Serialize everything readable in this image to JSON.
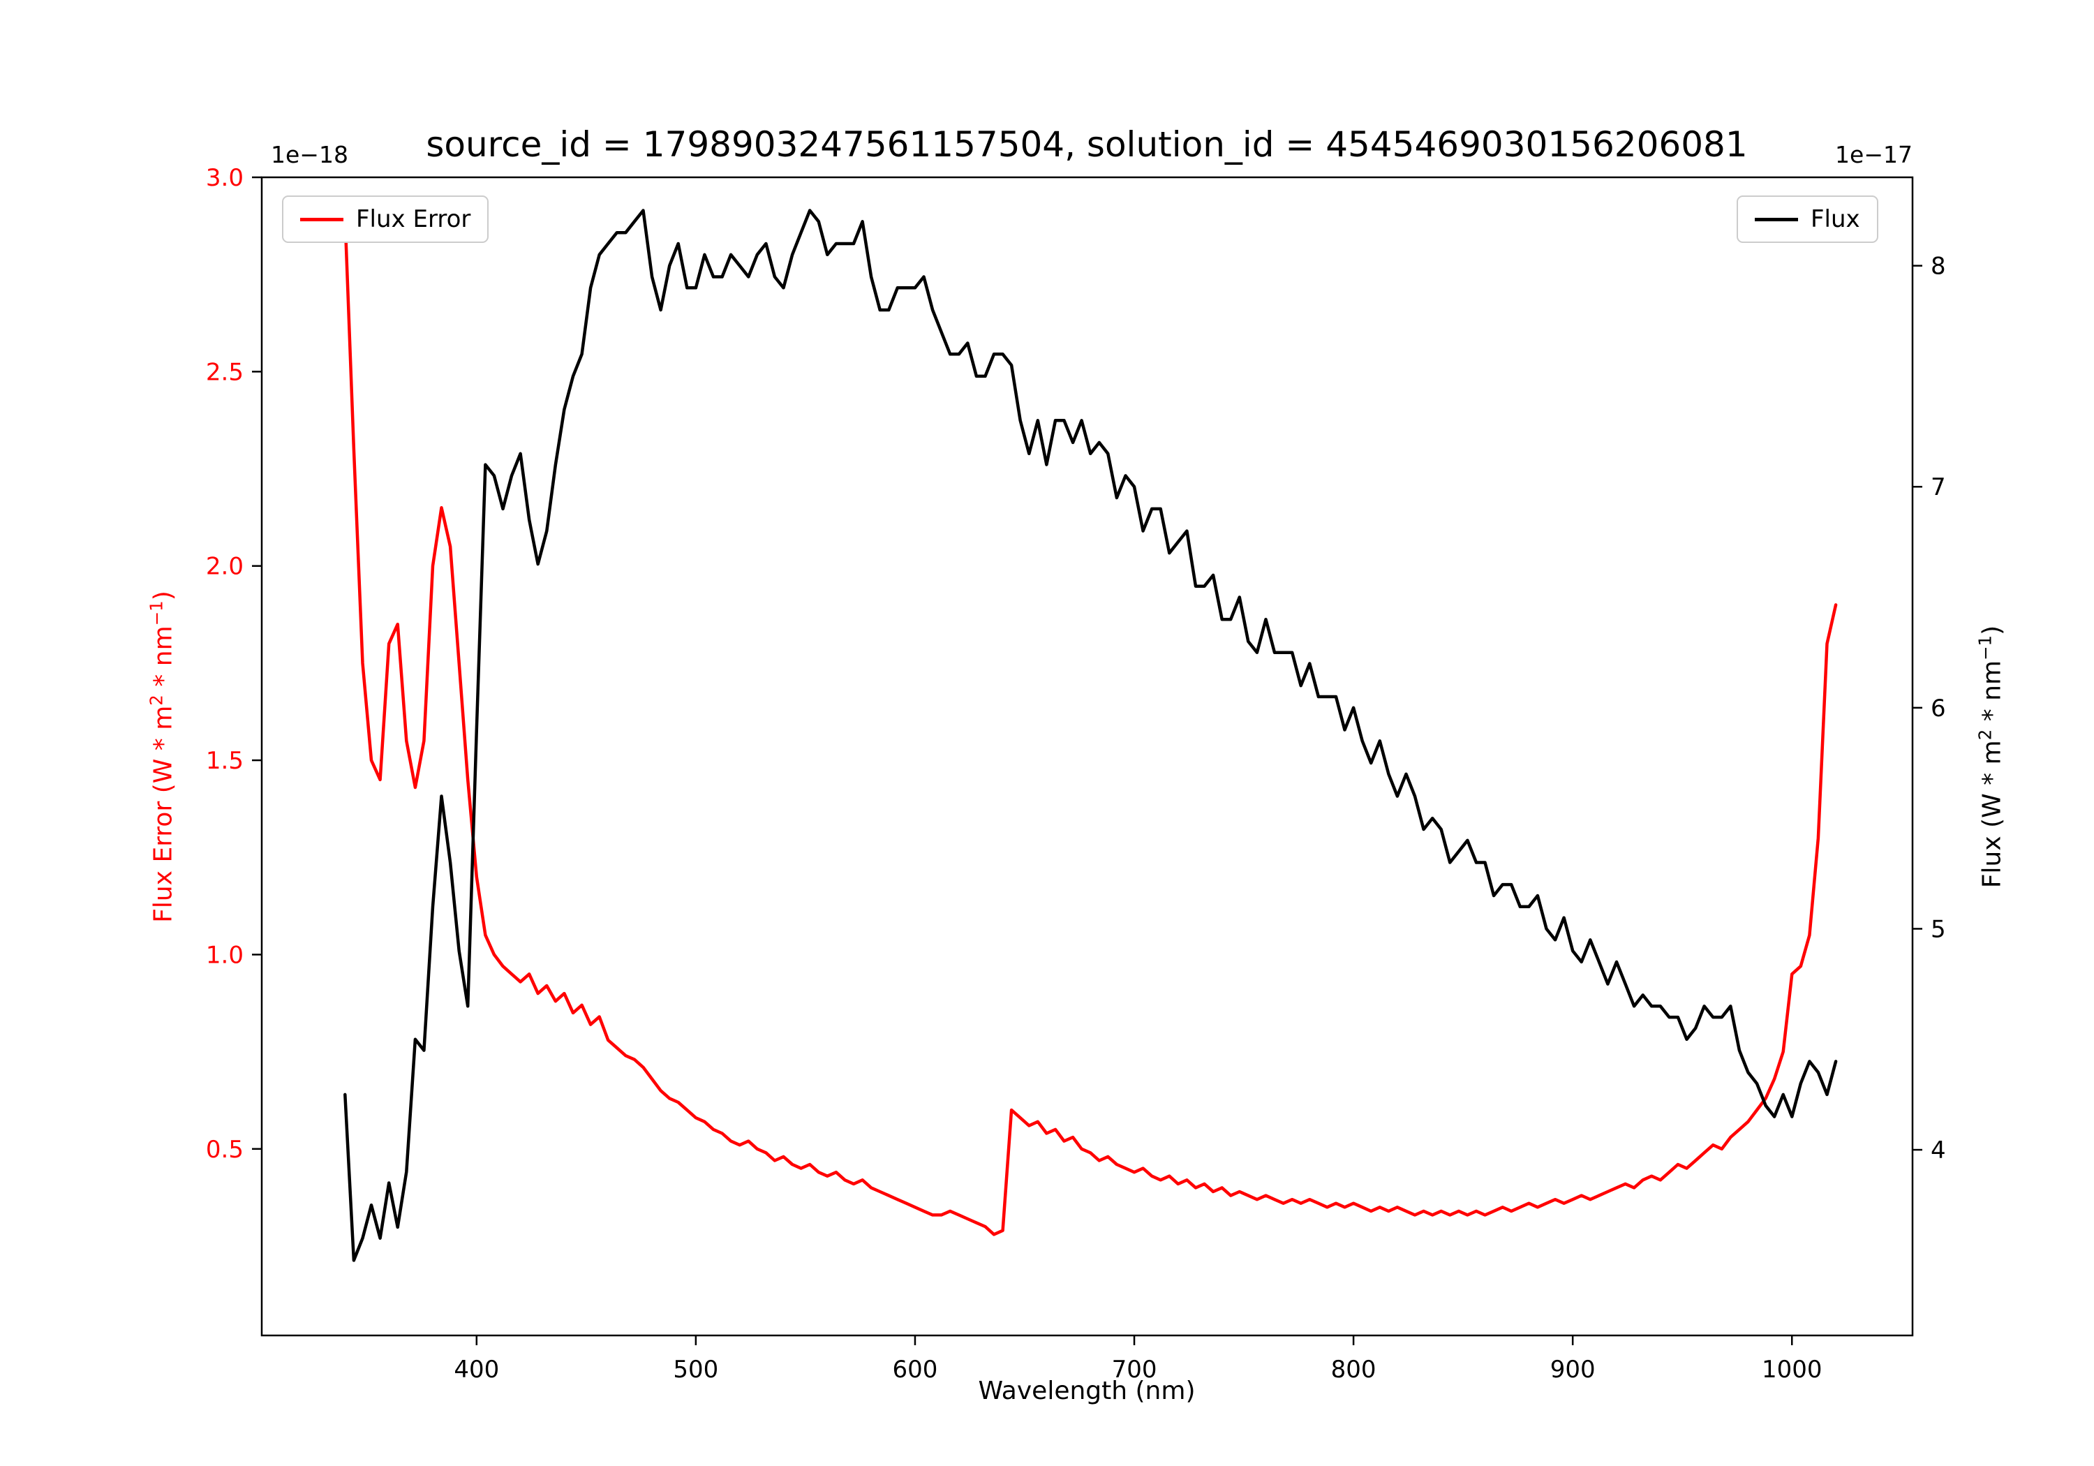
{
  "title": "source_id = 1798903247561157504, solution_id = 4545469030156206081",
  "xlabel": "Wavelength (nm)",
  "ylabel_left": {
    "p1": "Flux Error (W * m",
    "sup1": "2",
    "p2": " * nm",
    "sup2": "−1",
    "p3": ")"
  },
  "ylabel_right": {
    "p1": "Flux (W * m",
    "sup1": "2",
    "p2": " * nm",
    "sup2": "−1",
    "p3": ")"
  },
  "offset_left": "1e−18",
  "offset_right": "1e−17",
  "legend": {
    "flux_error": "Flux Error",
    "flux": "Flux"
  },
  "colors": {
    "flux_error": "#ff0000",
    "flux": "#000000",
    "axis": "#000000",
    "legend_border": "#cccccc"
  },
  "chart_data": {
    "type": "line",
    "title": "source_id = 1798903247561157504, solution_id = 4545469030156206081",
    "xlabel": "Wavelength (nm)",
    "ylabel_left": "Flux Error (W * m^2 * nm^-1)",
    "ylabel_right": "Flux (W * m^2 * nm^-1)",
    "y_left_scale_label": "1e-18",
    "y_right_scale_label": "1e-17",
    "grid": false,
    "xlim": [
      302,
      1055
    ],
    "x_ticks": [
      400,
      500,
      600,
      700,
      800,
      900,
      1000
    ],
    "ylim_left": [
      0.02,
      3.0
    ],
    "y_left_ticks": [
      0.5,
      1.0,
      1.5,
      2.0,
      2.5,
      3.0
    ],
    "ylim_right": [
      3.16,
      8.4
    ],
    "y_right_ticks": [
      4,
      5,
      6,
      7,
      8
    ],
    "legend_entries": [
      {
        "label": "Flux Error",
        "loc": "upper left",
        "color": "#ff0000"
      },
      {
        "label": "Flux",
        "loc": "upper right",
        "color": "#000000"
      }
    ],
    "x": [
      340,
      344,
      348,
      352,
      356,
      360,
      364,
      368,
      372,
      376,
      380,
      384,
      388,
      392,
      396,
      400,
      404,
      408,
      412,
      416,
      420,
      424,
      428,
      432,
      436,
      440,
      444,
      448,
      452,
      456,
      460,
      464,
      468,
      472,
      476,
      480,
      484,
      488,
      492,
      496,
      500,
      504,
      508,
      512,
      516,
      520,
      524,
      528,
      532,
      536,
      540,
      544,
      548,
      552,
      556,
      560,
      564,
      568,
      572,
      576,
      580,
      584,
      588,
      592,
      596,
      600,
      604,
      608,
      612,
      616,
      620,
      624,
      628,
      632,
      636,
      640,
      644,
      648,
      652,
      656,
      660,
      664,
      668,
      672,
      676,
      680,
      684,
      688,
      692,
      696,
      700,
      704,
      708,
      712,
      716,
      720,
      724,
      728,
      732,
      736,
      740,
      744,
      748,
      752,
      756,
      760,
      764,
      768,
      772,
      776,
      780,
      784,
      788,
      792,
      796,
      800,
      804,
      808,
      812,
      816,
      820,
      824,
      828,
      832,
      836,
      840,
      844,
      848,
      852,
      856,
      860,
      864,
      868,
      872,
      876,
      880,
      884,
      888,
      892,
      896,
      900,
      904,
      908,
      912,
      916,
      920,
      924,
      928,
      932,
      936,
      940,
      944,
      948,
      952,
      956,
      960,
      964,
      968,
      972,
      976,
      980,
      984,
      988,
      992,
      996,
      1000,
      1004,
      1008,
      1012,
      1016,
      1020
    ],
    "series": [
      {
        "name": "Flux Error",
        "axis": "left",
        "color": "#ff0000",
        "unit_scale": "1e-18",
        "values": [
          2.9,
          2.3,
          1.75,
          1.5,
          1.45,
          1.8,
          1.85,
          1.55,
          1.43,
          1.55,
          2.0,
          2.15,
          2.05,
          1.75,
          1.45,
          1.2,
          1.05,
          1.0,
          0.97,
          0.95,
          0.93,
          0.95,
          0.9,
          0.92,
          0.88,
          0.9,
          0.85,
          0.87,
          0.82,
          0.84,
          0.78,
          0.76,
          0.74,
          0.73,
          0.71,
          0.68,
          0.65,
          0.63,
          0.62,
          0.6,
          0.58,
          0.57,
          0.55,
          0.54,
          0.52,
          0.51,
          0.52,
          0.5,
          0.49,
          0.47,
          0.48,
          0.46,
          0.45,
          0.46,
          0.44,
          0.43,
          0.44,
          0.42,
          0.41,
          0.42,
          0.4,
          0.39,
          0.38,
          0.37,
          0.36,
          0.35,
          0.34,
          0.33,
          0.33,
          0.34,
          0.33,
          0.32,
          0.31,
          0.3,
          0.28,
          0.29,
          0.6,
          0.58,
          0.56,
          0.57,
          0.54,
          0.55,
          0.52,
          0.53,
          0.5,
          0.49,
          0.47,
          0.48,
          0.46,
          0.45,
          0.44,
          0.45,
          0.43,
          0.42,
          0.43,
          0.41,
          0.42,
          0.4,
          0.41,
          0.39,
          0.4,
          0.38,
          0.39,
          0.38,
          0.37,
          0.38,
          0.37,
          0.36,
          0.37,
          0.36,
          0.37,
          0.36,
          0.35,
          0.36,
          0.35,
          0.36,
          0.35,
          0.34,
          0.35,
          0.34,
          0.35,
          0.34,
          0.33,
          0.34,
          0.33,
          0.34,
          0.33,
          0.34,
          0.33,
          0.34,
          0.33,
          0.34,
          0.35,
          0.34,
          0.35,
          0.36,
          0.35,
          0.36,
          0.37,
          0.36,
          0.37,
          0.38,
          0.37,
          0.38,
          0.39,
          0.4,
          0.41,
          0.4,
          0.42,
          0.43,
          0.42,
          0.44,
          0.46,
          0.45,
          0.47,
          0.49,
          0.51,
          0.5,
          0.53,
          0.55,
          0.57,
          0.6,
          0.63,
          0.68,
          0.75,
          0.95,
          0.97,
          1.05,
          1.3,
          1.8,
          1.9
        ]
      },
      {
        "name": "Flux",
        "axis": "right",
        "color": "#000000",
        "unit_scale": "1e-17",
        "values": [
          4.25,
          3.5,
          3.6,
          3.75,
          3.6,
          3.85,
          3.65,
          3.9,
          4.5,
          4.45,
          5.1,
          5.6,
          5.3,
          4.9,
          4.65,
          5.9,
          7.1,
          7.05,
          6.9,
          7.05,
          7.15,
          6.85,
          6.65,
          6.8,
          7.1,
          7.35,
          7.5,
          7.6,
          7.9,
          8.05,
          8.1,
          8.15,
          8.15,
          8.2,
          8.25,
          7.95,
          7.8,
          8.0,
          8.1,
          7.9,
          7.9,
          8.05,
          7.95,
          7.95,
          8.05,
          8.0,
          7.95,
          8.05,
          8.1,
          7.95,
          7.9,
          8.05,
          8.15,
          8.25,
          8.2,
          8.05,
          8.1,
          8.1,
          8.1,
          8.2,
          7.95,
          7.8,
          7.8,
          7.9,
          7.9,
          7.9,
          7.95,
          7.8,
          7.7,
          7.6,
          7.6,
          7.65,
          7.5,
          7.5,
          7.6,
          7.6,
          7.55,
          7.3,
          7.15,
          7.3,
          7.1,
          7.3,
          7.3,
          7.2,
          7.3,
          7.15,
          7.2,
          7.15,
          6.95,
          7.05,
          7.0,
          6.8,
          6.9,
          6.9,
          6.7,
          6.75,
          6.8,
          6.55,
          6.55,
          6.6,
          6.4,
          6.4,
          6.5,
          6.3,
          6.25,
          6.4,
          6.25,
          6.25,
          6.25,
          6.1,
          6.2,
          6.05,
          6.05,
          6.05,
          5.9,
          6.0,
          5.85,
          5.75,
          5.85,
          5.7,
          5.6,
          5.7,
          5.6,
          5.45,
          5.5,
          5.45,
          5.3,
          5.35,
          5.4,
          5.3,
          5.3,
          5.15,
          5.2,
          5.2,
          5.1,
          5.1,
          5.15,
          5.0,
          4.95,
          5.05,
          4.9,
          4.85,
          4.95,
          4.85,
          4.75,
          4.85,
          4.75,
          4.65,
          4.7,
          4.65,
          4.65,
          4.6,
          4.6,
          4.5,
          4.55,
          4.65,
          4.6,
          4.6,
          4.65,
          4.45,
          4.35,
          4.3,
          4.2,
          4.15,
          4.25,
          4.15,
          4.3,
          4.4,
          4.35,
          4.25,
          4.4
        ]
      }
    ]
  }
}
